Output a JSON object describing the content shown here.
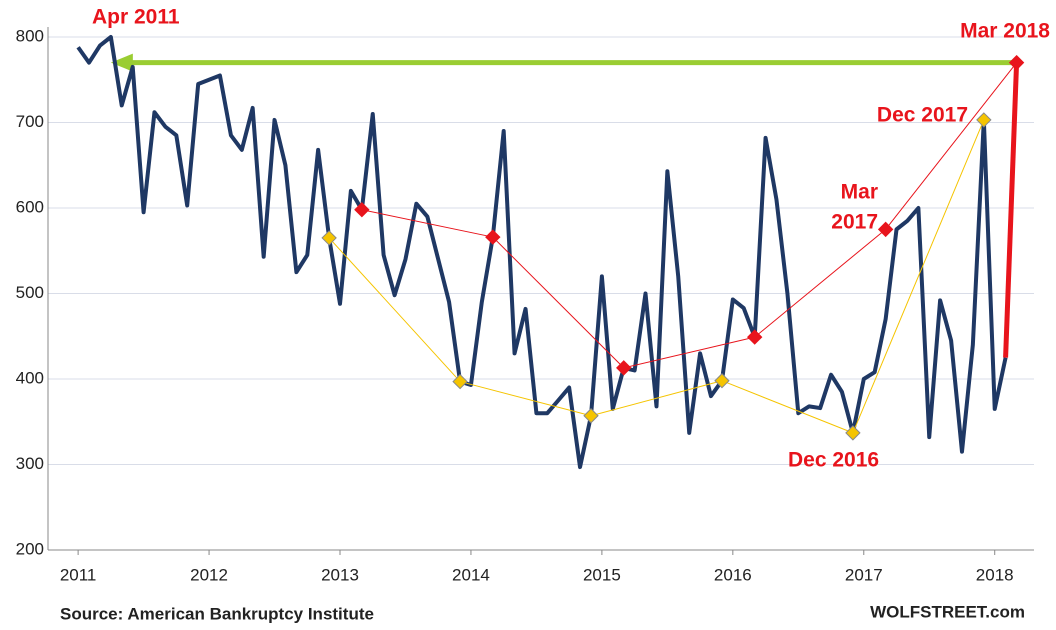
{
  "chart_data": {
    "type": "line",
    "annotations": [
      "Apr 2011",
      "Mar 2018",
      "Dec 2017",
      [
        "Mar",
        "2017"
      ],
      "Dec 2016"
    ],
    "source": "Source: American Bankruptcy Institute",
    "credit": "WOLFSTREET.com",
    "xlim": [
      2010.77,
      2018.3
    ],
    "xticks": [
      2011,
      2012,
      2013,
      2014,
      2015,
      2016,
      2017,
      2018
    ],
    "ylim": [
      200,
      800
    ],
    "yticks": [
      200,
      300,
      400,
      500,
      600,
      700,
      800
    ],
    "grid": true,
    "series": [
      {
        "color": "#1f3864",
        "width": 4,
        "markers": false,
        "x": [
          2011,
          2011.083,
          2011.167,
          2011.25,
          2011.333,
          2011.417,
          2011.5,
          2011.583,
          2011.667,
          2011.75,
          2011.833,
          2011.917,
          2012,
          2012.083,
          2012.167,
          2012.25,
          2012.333,
          2012.417,
          2012.5,
          2012.583,
          2012.667,
          2012.75,
          2012.833,
          2012.917,
          2013,
          2013.083,
          2013.167,
          2013.25,
          2013.333,
          2013.417,
          2013.5,
          2013.583,
          2013.667,
          2013.75,
          2013.833,
          2013.917,
          2014,
          2014.083,
          2014.167,
          2014.25,
          2014.333,
          2014.417,
          2014.5,
          2014.583,
          2014.667,
          2014.75,
          2014.833,
          2014.917,
          2015,
          2015.083,
          2015.167,
          2015.25,
          2015.333,
          2015.417,
          2015.5,
          2015.583,
          2015.667,
          2015.75,
          2015.833,
          2015.917,
          2016,
          2016.083,
          2016.167,
          2016.25,
          2016.333,
          2016.417,
          2016.5,
          2016.583,
          2016.667,
          2016.75,
          2016.833,
          2016.917,
          2017,
          2017.083,
          2017.167,
          2017.25,
          2017.333,
          2017.417,
          2017.5,
          2017.583,
          2017.667,
          2017.75,
          2017.833,
          2017.917,
          2018,
          2018.083
        ],
        "values": [
          788,
          770,
          790,
          800,
          720,
          765,
          595,
          712,
          695,
          685,
          603,
          745,
          750,
          755,
          685,
          668,
          717,
          543,
          703,
          650,
          525,
          545,
          668,
          565,
          488,
          620,
          598,
          710,
          545,
          498,
          540,
          605,
          590,
          540,
          490,
          397,
          393,
          490,
          566,
          690,
          430,
          482,
          360,
          360,
          375,
          390,
          297,
          357,
          520,
          365,
          413,
          410,
          500,
          368,
          643,
          520,
          337,
          430,
          380,
          398,
          493,
          483,
          449,
          682,
          610,
          500,
          360,
          368,
          366,
          405,
          385,
          337,
          400,
          408,
          470,
          575,
          585,
          600,
          332,
          492,
          445,
          315,
          440,
          703,
          365,
          425
        ]
      },
      {
        "color": "#e8141c",
        "width": 1,
        "markers": true,
        "x": [
          2013.167,
          2014.167,
          2015.167,
          2016.167,
          2017.167,
          2018.167
        ],
        "values": [
          598,
          566,
          413,
          449,
          575,
          770
        ]
      },
      {
        "color": "#f5c400",
        "width": 1,
        "markers": true,
        "x": [
          2012.917,
          2013.917,
          2014.917,
          2015.917,
          2016.917,
          2017.917
        ],
        "values": [
          565,
          397,
          357,
          398,
          337,
          703
        ]
      }
    ]
  }
}
